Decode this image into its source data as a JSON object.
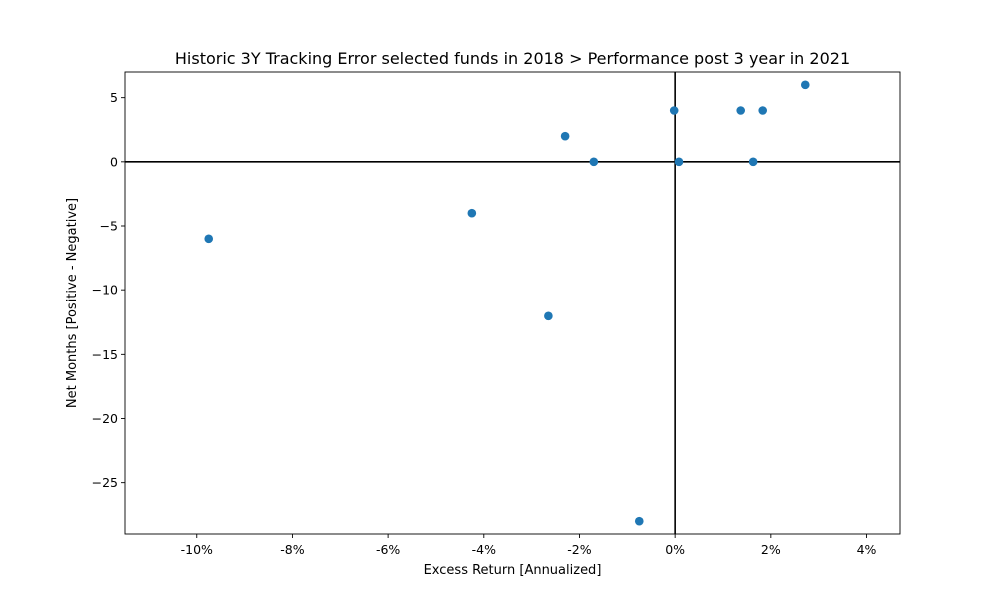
{
  "chart_data": {
    "type": "scatter",
    "title": "Historic 3Y Tracking Error selected funds in 2018 > Performance post 3 year in 2021",
    "xlabel": "Excess Return [Annualized]",
    "ylabel": "Net Months [Positive - Negative]",
    "xlim": [
      -11.5,
      4.7
    ],
    "ylim": [
      -29,
      7
    ],
    "x_ticks": [
      -10,
      -8,
      -6,
      -4,
      -2,
      0,
      2,
      4
    ],
    "x_tick_labels": [
      "-10%",
      "-8%",
      "-6%",
      "-4%",
      "-2%",
      "0%",
      "2%",
      "4%"
    ],
    "y_ticks": [
      5,
      0,
      -5,
      -10,
      -15,
      -20,
      -25
    ],
    "y_tick_labels": [
      "5",
      "0",
      "−5",
      "−10",
      "−15",
      "−20",
      "−25"
    ],
    "reference_lines": {
      "x": 0,
      "y": 0,
      "color": "#000000"
    },
    "grid": false,
    "marker_color": "#1f77b4",
    "points": [
      {
        "x": -9.75,
        "y": -6
      },
      {
        "x": -4.25,
        "y": -4
      },
      {
        "x": -2.65,
        "y": -12
      },
      {
        "x": -2.3,
        "y": 2
      },
      {
        "x": -1.7,
        "y": 0
      },
      {
        "x": -0.75,
        "y": -28
      },
      {
        "x": -0.02,
        "y": 4
      },
      {
        "x": 0.08,
        "y": 0
      },
      {
        "x": 1.37,
        "y": 4
      },
      {
        "x": 1.63,
        "y": 0
      },
      {
        "x": 1.83,
        "y": 4
      },
      {
        "x": 2.72,
        "y": 6
      }
    ]
  }
}
